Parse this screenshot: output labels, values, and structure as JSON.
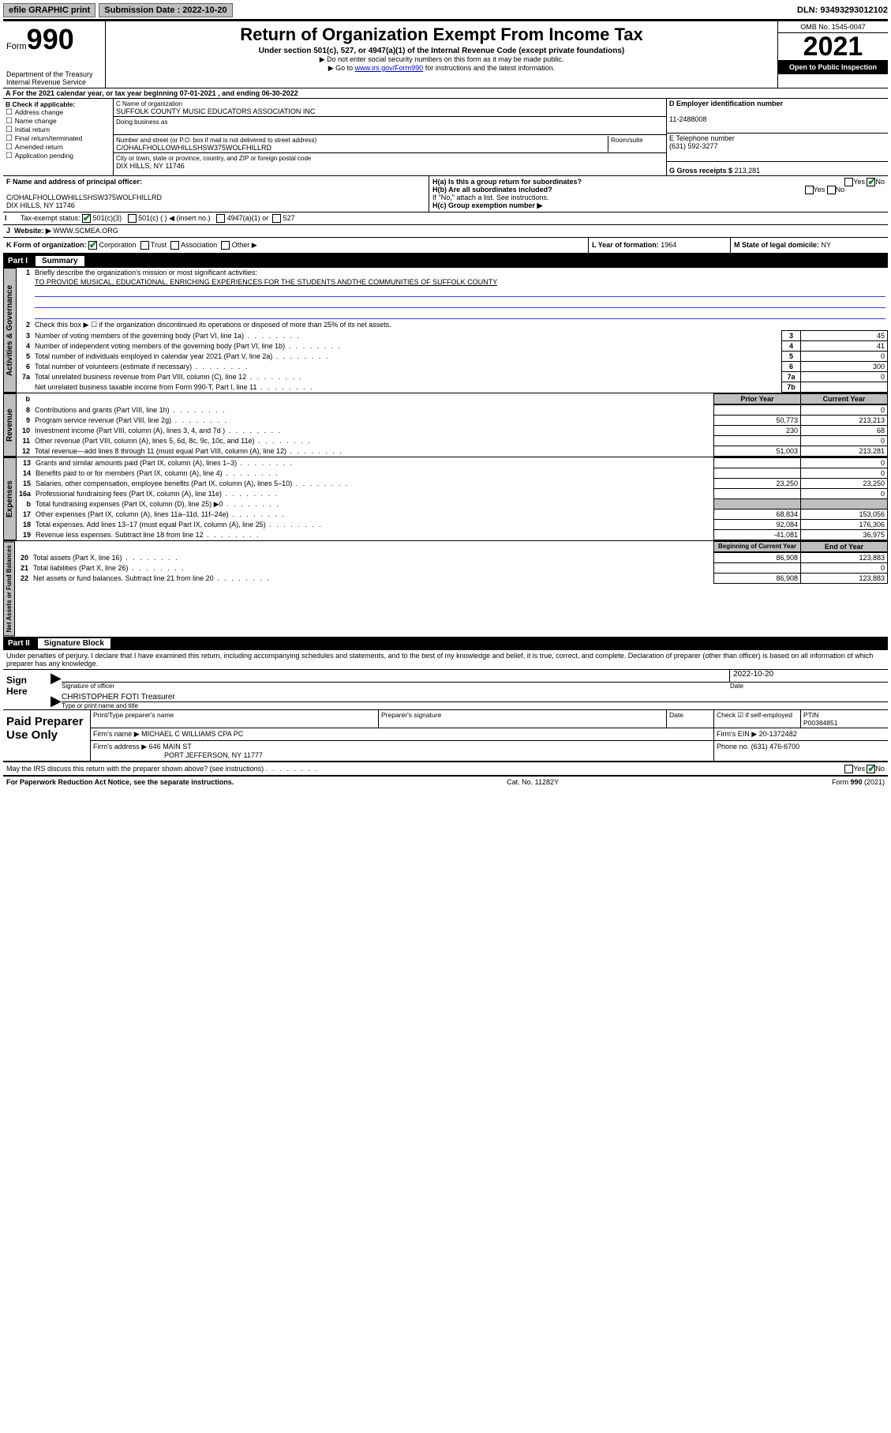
{
  "top": {
    "efile": "efile GRAPHIC print",
    "submission": "Submission Date : 2022-10-20",
    "dln": "DLN: 93493293012102"
  },
  "header": {
    "form_label": "Form",
    "form_number": "990",
    "title": "Return of Organization Exempt From Income Tax",
    "subtitle": "Under section 501(c), 527, or 4947(a)(1) of the Internal Revenue Code (except private foundations)",
    "note1": "▶ Do not enter social security numbers on this form as it may be made public.",
    "note2_pre": "▶ Go to ",
    "note2_link": "www.irs.gov/Form990",
    "note2_post": " for instructions and the latest information.",
    "dept": "Department of the Treasury",
    "irs": "Internal Revenue Service",
    "omb": "OMB No. 1545-0047",
    "year": "2021",
    "open": "Open to Public Inspection"
  },
  "line_a": "For the 2021 calendar year, or tax year beginning 07-01-2021   , and ending 06-30-2022",
  "box_b": {
    "title": "B Check if applicable:",
    "items": [
      "Address change",
      "Name change",
      "Initial return",
      "Final return/terminated",
      "Amended return",
      "Application pending"
    ]
  },
  "box_c": {
    "label_name": "C Name of organization",
    "name": "SUFFOLK COUNTY MUSIC EDUCATORS ASSOCIATION INC",
    "dba_label": "Doing business as",
    "addr_label": "Number and street (or P.O. box if mail is not delivered to street address)",
    "room_label": "Room/suite",
    "addr": "C/OHALFHOLLOWHILLSHSW375WOLFHILLRD",
    "city_label": "City or town, state or province, country, and ZIP or foreign postal code",
    "city": "DIX HILLS, NY  11746"
  },
  "box_d": {
    "label": "D Employer identification number",
    "value": "11-2488008"
  },
  "box_e": {
    "label": "E Telephone number",
    "value": "(631) 592-3277"
  },
  "box_g": {
    "label": "G Gross receipts $",
    "value": "213,281"
  },
  "box_f": {
    "label": "F  Name and address of principal officer:",
    "line1": "C/OHALFHOLLOWHILLSHSW375WOLFHILLRD",
    "line2": "DIX HILLS, NY  11746"
  },
  "box_h": {
    "ha": "H(a)  Is this a group return for subordinates?",
    "hb": "H(b)  Are all subordinates included?",
    "hb_note": "If \"No,\" attach a list. See instructions.",
    "hc": "H(c)  Group exemption number ▶",
    "yes": "Yes",
    "no": "No"
  },
  "box_i": {
    "label": "Tax-exempt status:",
    "opt1": "501(c)(3)",
    "opt2": "501(c) (   ) ◀ (insert no.)",
    "opt3": "4947(a)(1) or",
    "opt4": "527"
  },
  "box_j": {
    "label": "Website: ▶",
    "value": "WWW.SCMEA.ORG"
  },
  "box_k": {
    "label": "K Form of organization:",
    "opts": [
      "Corporation",
      "Trust",
      "Association",
      "Other ▶"
    ]
  },
  "box_l": {
    "label": "L Year of formation:",
    "value": "1964"
  },
  "box_m": {
    "label": "M State of legal domicile:",
    "value": "NY"
  },
  "part1": {
    "num": "Part I",
    "title": "Summary"
  },
  "summary": {
    "sections": [
      "Activities & Governance",
      "Revenue",
      "Expenses",
      "Net Assets or Fund Balances"
    ],
    "line1": "Briefly describe the organization's mission or most significant activities:",
    "mission": "TO PROVIDE MUSICAL, EDUCATIONAL, ENRICHING EXPERIENCES FOR THE STUDENTS ANDTHE COMMUNITIES OF SUFFOLK COUNTY",
    "line2": "Check this box ▶ ☐  if the organization discontinued its operations or disposed of more than 25% of its net assets.",
    "col_prior": "Prior Year",
    "col_current": "Current Year",
    "col_begin": "Beginning of Current Year",
    "col_end": "End of Year",
    "rows_gov": [
      {
        "n": "3",
        "t": "Number of voting members of the governing body (Part VI, line 1a)",
        "lab": "3",
        "v": "45"
      },
      {
        "n": "4",
        "t": "Number of independent voting members of the governing body (Part VI, line 1b)",
        "lab": "4",
        "v": "41"
      },
      {
        "n": "5",
        "t": "Total number of individuals employed in calendar year 2021 (Part V, line 2a)",
        "lab": "5",
        "v": "0"
      },
      {
        "n": "6",
        "t": "Total number of volunteers (estimate if necessary)",
        "lab": "6",
        "v": "300"
      },
      {
        "n": "7a",
        "t": "Total unrelated business revenue from Part VIII, column (C), line 12",
        "lab": "7a",
        "v": "0"
      },
      {
        "n": "",
        "t": "Net unrelated business taxable income from Form 990-T, Part I, line 11",
        "lab": "7b",
        "v": ""
      }
    ],
    "rows_rev": [
      {
        "n": "8",
        "t": "Contributions and grants (Part VIII, line 1h)",
        "p": "",
        "c": "0"
      },
      {
        "n": "9",
        "t": "Program service revenue (Part VIII, line 2g)",
        "p": "50,773",
        "c": "213,213"
      },
      {
        "n": "10",
        "t": "Investment income (Part VIII, column (A), lines 3, 4, and 7d )",
        "p": "230",
        "c": "68"
      },
      {
        "n": "11",
        "t": "Other revenue (Part VIII, column (A), lines 5, 6d, 8c, 9c, 10c, and 11e)",
        "p": "",
        "c": "0"
      },
      {
        "n": "12",
        "t": "Total revenue—add lines 8 through 11 (must equal Part VIII, column (A), line 12)",
        "p": "51,003",
        "c": "213,281"
      }
    ],
    "rows_exp": [
      {
        "n": "13",
        "t": "Grants and similar amounts paid (Part IX, column (A), lines 1–3)",
        "p": "",
        "c": "0"
      },
      {
        "n": "14",
        "t": "Benefits paid to or for members (Part IX, column (A), line 4)",
        "p": "",
        "c": "0"
      },
      {
        "n": "15",
        "t": "Salaries, other compensation, employee benefits (Part IX, column (A), lines 5–10)",
        "p": "23,250",
        "c": "23,250"
      },
      {
        "n": "16a",
        "t": "Professional fundraising fees (Part IX, column (A), line 11e)",
        "p": "",
        "c": "0"
      },
      {
        "n": "b",
        "t": "Total fundraising expenses (Part IX, column (D), line 25) ▶0",
        "p": "—",
        "c": "—"
      },
      {
        "n": "17",
        "t": "Other expenses (Part IX, column (A), lines 11a–11d, 11f–24e)",
        "p": "68,834",
        "c": "153,056"
      },
      {
        "n": "18",
        "t": "Total expenses. Add lines 13–17 (must equal Part IX, column (A), line 25)",
        "p": "92,084",
        "c": "176,306"
      },
      {
        "n": "19",
        "t": "Revenue less expenses. Subtract line 18 from line 12",
        "p": "-41,081",
        "c": "36,975"
      }
    ],
    "rows_net": [
      {
        "n": "20",
        "t": "Total assets (Part X, line 16)",
        "p": "86,908",
        "c": "123,883"
      },
      {
        "n": "21",
        "t": "Total liabilities (Part X, line 26)",
        "p": "",
        "c": "0"
      },
      {
        "n": "22",
        "t": "Net assets or fund balances. Subtract line 21 from line 20",
        "p": "86,908",
        "c": "123,883"
      }
    ]
  },
  "part2": {
    "num": "Part II",
    "title": "Signature Block"
  },
  "penalty": "Under penalties of perjury, I declare that I have examined this return, including accompanying schedules and statements, and to the best of my knowledge and belief, it is true, correct, and complete. Declaration of preparer (other than officer) is based on all information of which preparer has any knowledge.",
  "sign": {
    "here": "Sign Here",
    "sig_officer": "Signature of officer",
    "date_label": "Date",
    "date": "2022-10-20",
    "name": "CHRISTOPHER FOTI Treasurer",
    "name_label": "Type or print name and title"
  },
  "paid": {
    "title": "Paid Preparer Use Only",
    "h1": "Print/Type preparer's name",
    "h2": "Preparer's signature",
    "h3": "Date",
    "h4": "Check ☑ if self-employed",
    "h5_label": "PTIN",
    "h5": "P00384851",
    "firm_name_label": "Firm's name    ▶",
    "firm_name": "MICHAEL C WILLIAMS CPA PC",
    "firm_ein_label": "Firm's EIN ▶",
    "firm_ein": "20-1372482",
    "firm_addr_label": "Firm's address ▶",
    "firm_addr1": "646 MAIN ST",
    "firm_addr2": "PORT JEFFERSON, NY  11777",
    "phone_label": "Phone no.",
    "phone": "(631) 476-6700"
  },
  "discuss": "May the IRS discuss this return with the preparer shown above? (see instructions)",
  "footer": {
    "left": "For Paperwork Reduction Act Notice, see the separate instructions.",
    "mid": "Cat. No. 11282Y",
    "right": "Form 990 (2021)"
  }
}
